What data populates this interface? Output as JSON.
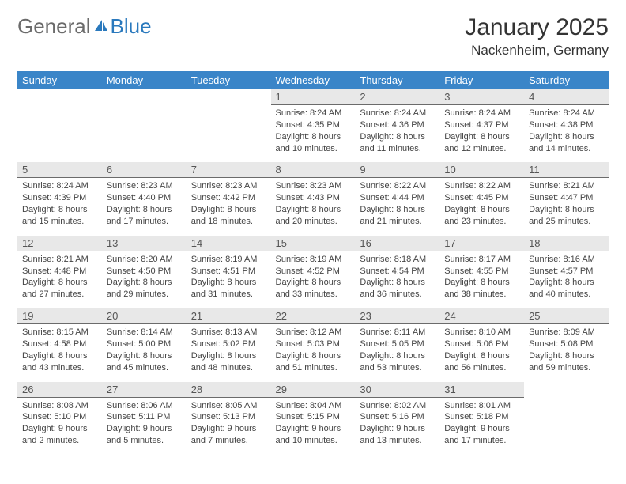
{
  "logo": {
    "part1": "General",
    "part2": "Blue"
  },
  "title": "January 2025",
  "subtitle": "Nackenheim, Germany",
  "colors": {
    "header_bg": "#3a85c8",
    "header_text": "#ffffff",
    "daynum_bg": "#e8e8e8",
    "daynum_border": "#6b6b6b",
    "body_text": "#444444",
    "title_text": "#333333",
    "logo_gray": "#6b6b6b",
    "logo_blue": "#2a79bd"
  },
  "day_headers": [
    "Sunday",
    "Monday",
    "Tuesday",
    "Wednesday",
    "Thursday",
    "Friday",
    "Saturday"
  ],
  "weeks": [
    {
      "nums": [
        "",
        "",
        "",
        "1",
        "2",
        "3",
        "4"
      ],
      "info": [
        "",
        "",
        "",
        "Sunrise: 8:24 AM\nSunset: 4:35 PM\nDaylight: 8 hours and 10 minutes.",
        "Sunrise: 8:24 AM\nSunset: 4:36 PM\nDaylight: 8 hours and 11 minutes.",
        "Sunrise: 8:24 AM\nSunset: 4:37 PM\nDaylight: 8 hours and 12 minutes.",
        "Sunrise: 8:24 AM\nSunset: 4:38 PM\nDaylight: 8 hours and 14 minutes."
      ]
    },
    {
      "nums": [
        "5",
        "6",
        "7",
        "8",
        "9",
        "10",
        "11"
      ],
      "info": [
        "Sunrise: 8:24 AM\nSunset: 4:39 PM\nDaylight: 8 hours and 15 minutes.",
        "Sunrise: 8:23 AM\nSunset: 4:40 PM\nDaylight: 8 hours and 17 minutes.",
        "Sunrise: 8:23 AM\nSunset: 4:42 PM\nDaylight: 8 hours and 18 minutes.",
        "Sunrise: 8:23 AM\nSunset: 4:43 PM\nDaylight: 8 hours and 20 minutes.",
        "Sunrise: 8:22 AM\nSunset: 4:44 PM\nDaylight: 8 hours and 21 minutes.",
        "Sunrise: 8:22 AM\nSunset: 4:45 PM\nDaylight: 8 hours and 23 minutes.",
        "Sunrise: 8:21 AM\nSunset: 4:47 PM\nDaylight: 8 hours and 25 minutes."
      ]
    },
    {
      "nums": [
        "12",
        "13",
        "14",
        "15",
        "16",
        "17",
        "18"
      ],
      "info": [
        "Sunrise: 8:21 AM\nSunset: 4:48 PM\nDaylight: 8 hours and 27 minutes.",
        "Sunrise: 8:20 AM\nSunset: 4:50 PM\nDaylight: 8 hours and 29 minutes.",
        "Sunrise: 8:19 AM\nSunset: 4:51 PM\nDaylight: 8 hours and 31 minutes.",
        "Sunrise: 8:19 AM\nSunset: 4:52 PM\nDaylight: 8 hours and 33 minutes.",
        "Sunrise: 8:18 AM\nSunset: 4:54 PM\nDaylight: 8 hours and 36 minutes.",
        "Sunrise: 8:17 AM\nSunset: 4:55 PM\nDaylight: 8 hours and 38 minutes.",
        "Sunrise: 8:16 AM\nSunset: 4:57 PM\nDaylight: 8 hours and 40 minutes."
      ]
    },
    {
      "nums": [
        "19",
        "20",
        "21",
        "22",
        "23",
        "24",
        "25"
      ],
      "info": [
        "Sunrise: 8:15 AM\nSunset: 4:58 PM\nDaylight: 8 hours and 43 minutes.",
        "Sunrise: 8:14 AM\nSunset: 5:00 PM\nDaylight: 8 hours and 45 minutes.",
        "Sunrise: 8:13 AM\nSunset: 5:02 PM\nDaylight: 8 hours and 48 minutes.",
        "Sunrise: 8:12 AM\nSunset: 5:03 PM\nDaylight: 8 hours and 51 minutes.",
        "Sunrise: 8:11 AM\nSunset: 5:05 PM\nDaylight: 8 hours and 53 minutes.",
        "Sunrise: 8:10 AM\nSunset: 5:06 PM\nDaylight: 8 hours and 56 minutes.",
        "Sunrise: 8:09 AM\nSunset: 5:08 PM\nDaylight: 8 hours and 59 minutes."
      ]
    },
    {
      "nums": [
        "26",
        "27",
        "28",
        "29",
        "30",
        "31",
        ""
      ],
      "info": [
        "Sunrise: 8:08 AM\nSunset: 5:10 PM\nDaylight: 9 hours and 2 minutes.",
        "Sunrise: 8:06 AM\nSunset: 5:11 PM\nDaylight: 9 hours and 5 minutes.",
        "Sunrise: 8:05 AM\nSunset: 5:13 PM\nDaylight: 9 hours and 7 minutes.",
        "Sunrise: 8:04 AM\nSunset: 5:15 PM\nDaylight: 9 hours and 10 minutes.",
        "Sunrise: 8:02 AM\nSunset: 5:16 PM\nDaylight: 9 hours and 13 minutes.",
        "Sunrise: 8:01 AM\nSunset: 5:18 PM\nDaylight: 9 hours and 17 minutes.",
        ""
      ]
    }
  ]
}
